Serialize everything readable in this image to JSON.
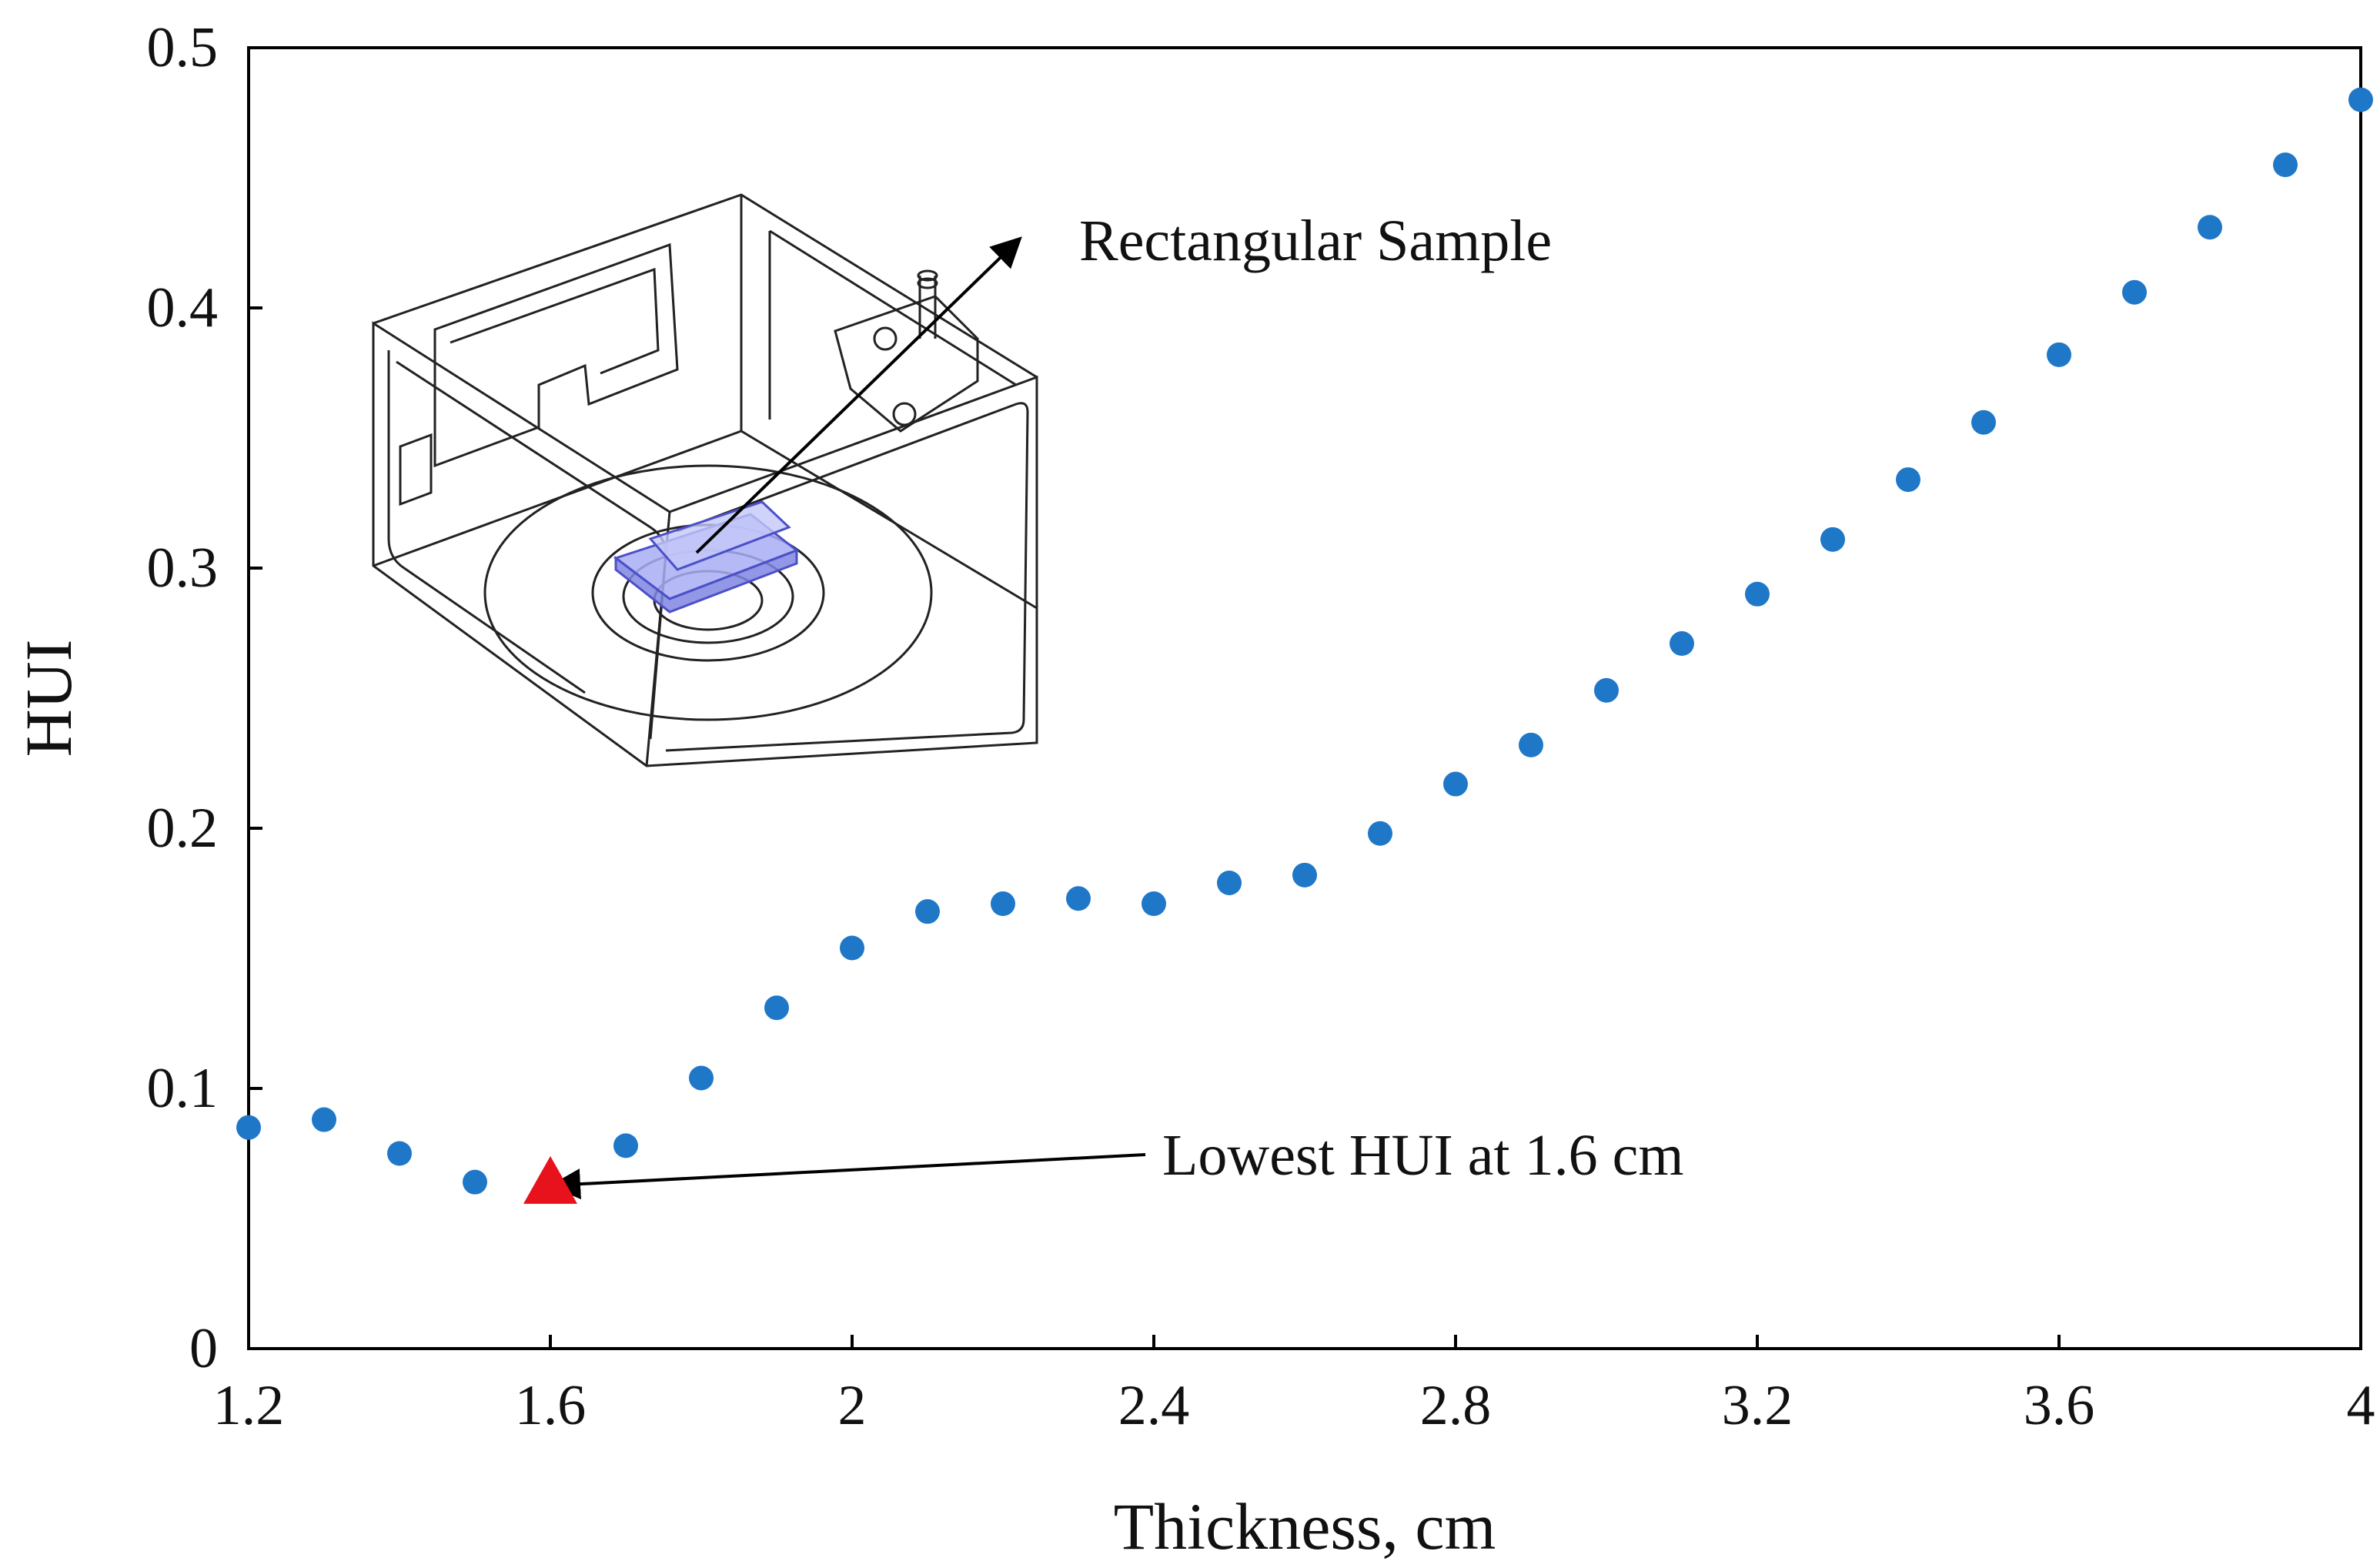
{
  "chart_data": {
    "type": "scatter",
    "title": "",
    "xlabel": "Thickness, cm",
    "ylabel": "HUI",
    "xlim": [
      1.2,
      4
    ],
    "ylim": [
      0,
      0.5
    ],
    "x_ticks": [
      "1.2",
      "1.6",
      "2",
      "2.4",
      "2.8",
      "3.2",
      "3.6",
      "4"
    ],
    "y_ticks": [
      "0",
      "0.1",
      "0.2",
      "0.3",
      "0.4",
      "0.5"
    ],
    "grid": false,
    "legend": "none",
    "series": [
      {
        "marker": "circle",
        "color": "#1f77c8",
        "points": [
          {
            "x": 1.2,
            "y": 0.085
          },
          {
            "x": 1.3,
            "y": 0.088
          },
          {
            "x": 1.4,
            "y": 0.075
          },
          {
            "x": 1.5,
            "y": 0.064
          },
          {
            "x": 1.7,
            "y": 0.078
          },
          {
            "x": 1.8,
            "y": 0.104
          },
          {
            "x": 1.9,
            "y": 0.131
          },
          {
            "x": 2.0,
            "y": 0.154
          },
          {
            "x": 2.1,
            "y": 0.168
          },
          {
            "x": 2.2,
            "y": 0.171
          },
          {
            "x": 2.3,
            "y": 0.173
          },
          {
            "x": 2.4,
            "y": 0.171
          },
          {
            "x": 2.5,
            "y": 0.179
          },
          {
            "x": 2.6,
            "y": 0.182
          },
          {
            "x": 2.7,
            "y": 0.198
          },
          {
            "x": 2.8,
            "y": 0.217
          },
          {
            "x": 2.9,
            "y": 0.232
          },
          {
            "x": 3.0,
            "y": 0.253
          },
          {
            "x": 3.1,
            "y": 0.271
          },
          {
            "x": 3.2,
            "y": 0.29
          },
          {
            "x": 3.3,
            "y": 0.311
          },
          {
            "x": 3.4,
            "y": 0.334
          },
          {
            "x": 3.5,
            "y": 0.356
          },
          {
            "x": 3.6,
            "y": 0.382
          },
          {
            "x": 3.7,
            "y": 0.406
          },
          {
            "x": 3.8,
            "y": 0.431
          },
          {
            "x": 3.9,
            "y": 0.455
          },
          {
            "x": 4.0,
            "y": 0.48
          }
        ]
      },
      {
        "marker": "triangle",
        "color": "#e8121c",
        "points": [
          {
            "x": 1.6,
            "y": 0.063
          }
        ]
      }
    ],
    "annotations": [
      {
        "text": "Rectangular Sample",
        "points_to": "inset-sample"
      },
      {
        "text": "Lowest HUI at 1.6 cm",
        "points_to": {
          "x": 1.6,
          "y": 0.063
        }
      }
    ],
    "inset": "microwave-cavity-3d-drawing"
  }
}
